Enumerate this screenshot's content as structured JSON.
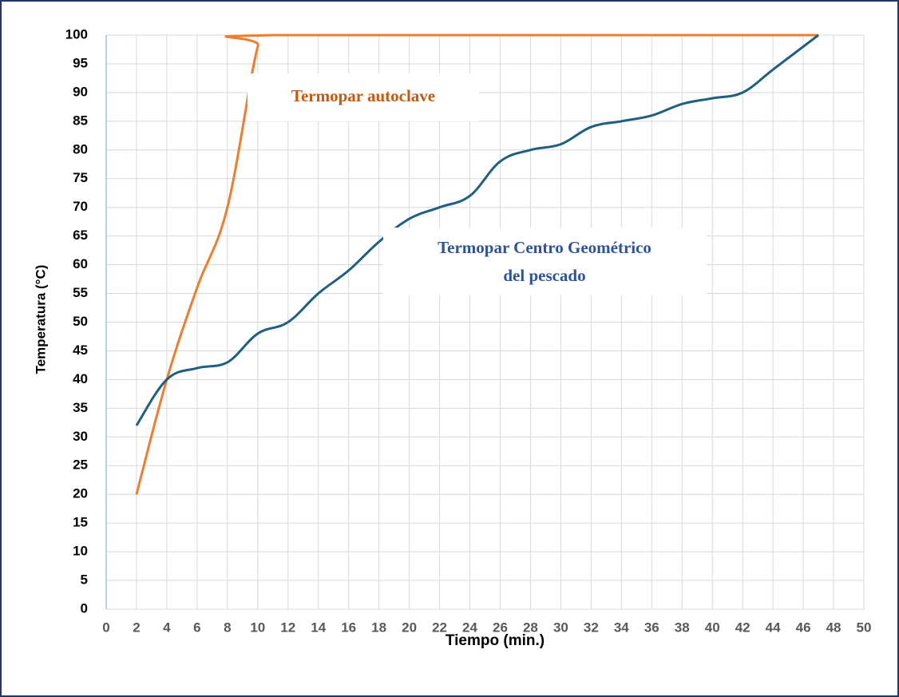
{
  "chart_data": {
    "type": "line",
    "xlabel": "Tiempo (min.)",
    "ylabel": "Temperatura (°C)",
    "xlim": [
      0,
      50
    ],
    "xticks": [
      0,
      2,
      4,
      6,
      8,
      10,
      12,
      14,
      16,
      18,
      20,
      22,
      24,
      26,
      28,
      30,
      32,
      34,
      36,
      38,
      40,
      42,
      44,
      46,
      48,
      50
    ],
    "ylim": [
      0,
      100
    ],
    "yticks": [
      0,
      5,
      10,
      15,
      20,
      25,
      30,
      35,
      40,
      45,
      50,
      55,
      60,
      65,
      70,
      75,
      80,
      85,
      90,
      95,
      100
    ],
    "grid": true,
    "series": [
      {
        "color": "#ed7d31",
        "x": [
          2,
          4,
          6,
          8,
          10,
          11,
          47
        ],
        "values": [
          20,
          40,
          56,
          70,
          98,
          100,
          100
        ]
      },
      {
        "color": "#1f5f7f",
        "x": [
          2,
          4,
          6,
          8,
          10,
          12,
          14,
          16,
          18,
          20,
          22,
          24,
          26,
          28,
          30,
          32,
          34,
          36,
          38,
          40,
          42,
          44,
          46,
          47
        ],
        "values": [
          32,
          40,
          42,
          43,
          48,
          50,
          55,
          59,
          64,
          68,
          70,
          72,
          78,
          80,
          81,
          84,
          85,
          86,
          88,
          89,
          90,
          94,
          98,
          100
        ]
      }
    ],
    "annotations": [
      {
        "lines": [
          "Termopar autoclave"
        ],
        "color": "#c55a11"
      },
      {
        "lines": [
          "Termopar Centro Geométrico",
          "del pescado"
        ],
        "color": "#2f5496"
      }
    ]
  }
}
